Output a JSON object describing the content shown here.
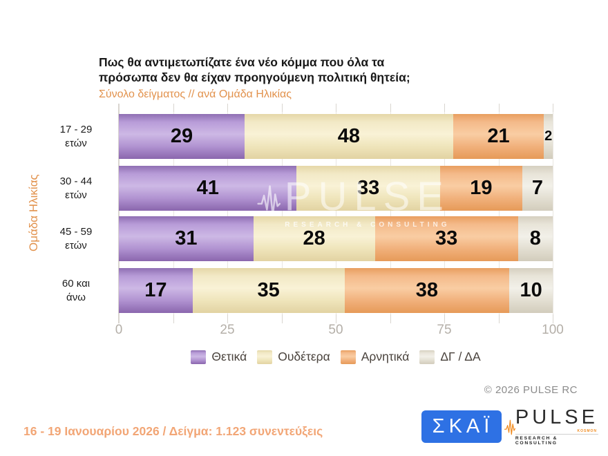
{
  "header": {
    "title": "Πως θα αντιμετωπίζατε ένα νέο κόμμα που όλα τα\nπρόσωπα δεν θα είχαν προηγούμενη πολιτική θητεία;",
    "subtitle": "Σύνολο δείγματος // ανά Ομάδα Ηλικίας"
  },
  "chart_data": {
    "type": "bar",
    "orientation": "horizontal-stacked",
    "title": "Πως θα αντιμετωπίζατε ένα νέο κόμμα που όλα τα πρόσωπα δεν θα είχαν προηγούμενη πολιτική θητεία;",
    "subtitle": "Σύνολο δείγματος // ανά Ομάδα Ηλικίας",
    "ylabel": "Ομάδα Ηλικίας",
    "xlabel": "",
    "categories": [
      "17 - 29\nετών",
      "30 - 44\nετών",
      "45 - 59\nετών",
      "60 και\nάνω"
    ],
    "series": [
      {
        "name": "Θετικά",
        "color": "#b497d6",
        "values": [
          29,
          41,
          31,
          17
        ]
      },
      {
        "name": "Ουδέτερα",
        "color": "#f3eac6",
        "values": [
          48,
          33,
          28,
          35
        ]
      },
      {
        "name": "Αρνητικά",
        "color": "#f3b580",
        "values": [
          21,
          19,
          33,
          38
        ]
      },
      {
        "name": "ΔΓ / ΔΑ",
        "color": "#e9e5d9",
        "values": [
          2,
          7,
          8,
          10
        ]
      }
    ],
    "xlim": [
      0,
      100
    ],
    "x_ticks": [
      0,
      25,
      50,
      75,
      100
    ],
    "grid_step": 12.5,
    "grid": true,
    "legend_position": "bottom"
  },
  "watermark": {
    "brand": "PULSE",
    "tagline": "RESEARCH & CONSULTING"
  },
  "footer": {
    "copyright": "©  2026  PULSE RC",
    "fieldwork": "16 - 19 Ιανουαρίου 2026  /  Δείγμα:  1.123 συνεντεύξεις",
    "logos": {
      "skai_text": "ΣΚΑΪ",
      "pulse_brand": "PULSE",
      "pulse_sub": "KOSMON",
      "pulse_tagline": "RESEARCH & CONSULTING"
    }
  }
}
